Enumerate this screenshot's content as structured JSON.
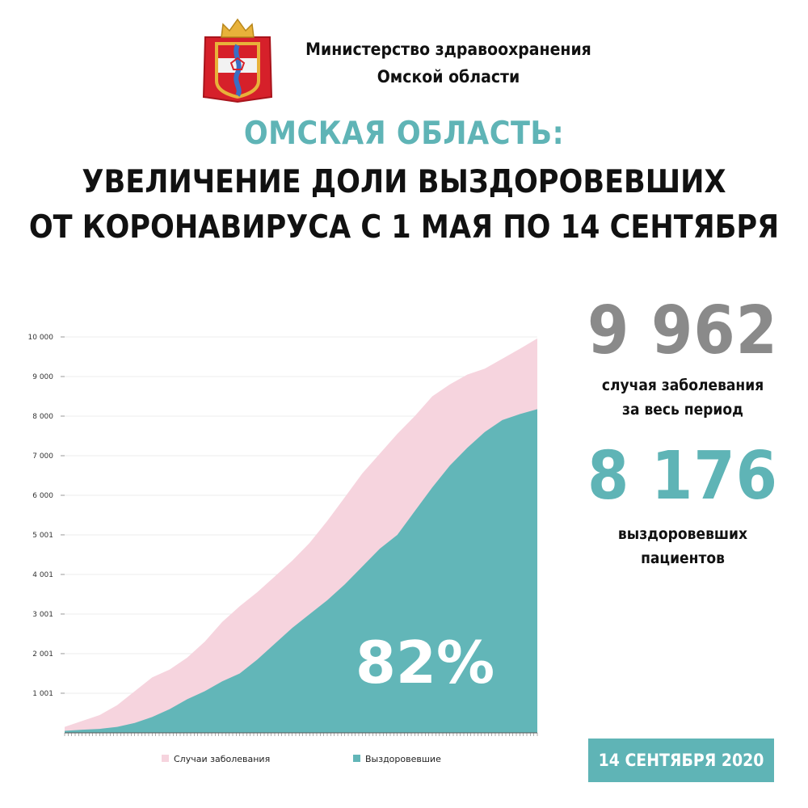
{
  "colors": {
    "accent": "#5fb4b6",
    "cases": "#f6d4de",
    "recovered": "#62b6b8",
    "big_number_gray": "#8a8a8a",
    "coat_red": "#d6202a",
    "coat_gold": "#e8b23a",
    "coat_blue": "#3a6fc4"
  },
  "header": {
    "logo": "omsk-oblast-coat-of-arms",
    "ministry_line1": "Министерство здравоохранения",
    "ministry_line2": "Омской области"
  },
  "title": {
    "accent": "ОМСКАЯ ОБЛАСТЬ:",
    "line1": "УВЕЛИЧЕНИЕ ДОЛИ ВЫЗДОРОВЕВШИХ",
    "line2": "ОТ КОРОНАВИРУСА С 1 МАЯ ПО 14 СЕНТЯБРЯ"
  },
  "stats": {
    "cases_number": "9 962",
    "cases_label_line1": "случая заболевания",
    "cases_label_line2": "за весь период",
    "recovered_number": "8 176",
    "recovered_label_line1": "выздоровевших",
    "recovered_label_line2": "пациентов"
  },
  "badge": {
    "date": "14 СЕНТЯБРЯ 2020"
  },
  "chart_data": {
    "type": "area",
    "title": "",
    "xlabel": "",
    "ylabel": "",
    "ylim": [
      0,
      10000
    ],
    "grid": true,
    "legend_position": "bottom",
    "y_tick_values": [
      1001,
      2001,
      3001,
      4001,
      5001,
      6000,
      7000,
      8000,
      9000,
      10000
    ],
    "y_tick_labels": [
      "1 001",
      "2 001",
      "3 001",
      "4 001",
      "5 001",
      "6 000",
      "7 000",
      "8 000",
      "9 000",
      "10 000"
    ],
    "x_tick_count": 136,
    "annotation": "82%",
    "series": [
      {
        "name": "Случаи заболевания",
        "color": "#f6d4de",
        "x_index": [
          0,
          5,
          10,
          15,
          20,
          25,
          30,
          35,
          40,
          45,
          50,
          55,
          60,
          65,
          70,
          75,
          80,
          85,
          90,
          95,
          100,
          105,
          110,
          115,
          120,
          125,
          130,
          135
        ],
        "values": [
          150,
          300,
          450,
          700,
          1050,
          1400,
          1600,
          1900,
          2300,
          2800,
          3200,
          3550,
          3950,
          4350,
          4800,
          5350,
          5950,
          6550,
          7050,
          7550,
          8000,
          8500,
          8800,
          9050,
          9200,
          9450,
          9700,
          9962
        ]
      },
      {
        "name": "Выздоровевшие",
        "color": "#62b6b8",
        "x_index": [
          0,
          5,
          10,
          15,
          20,
          25,
          30,
          35,
          40,
          45,
          50,
          55,
          60,
          65,
          70,
          75,
          80,
          85,
          90,
          95,
          100,
          105,
          110,
          115,
          120,
          125,
          130,
          135
        ],
        "values": [
          50,
          80,
          100,
          150,
          250,
          400,
          600,
          850,
          1050,
          1300,
          1500,
          1850,
          2250,
          2650,
          3000,
          3350,
          3750,
          4200,
          4650,
          5000,
          5600,
          6200,
          6750,
          7200,
          7600,
          7900,
          8050,
          8176
        ]
      }
    ]
  }
}
